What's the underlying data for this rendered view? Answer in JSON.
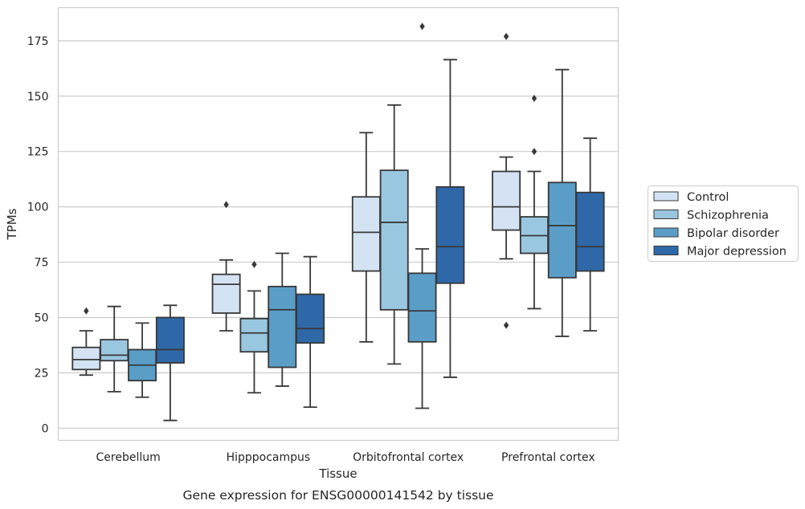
{
  "chart_data": {
    "type": "box",
    "title": "",
    "caption": "Gene expression for ENSG00000141542 by tissue",
    "xlabel": "Tissue",
    "ylabel": "TPMs",
    "ylim": [
      -5.5,
      190
    ],
    "yticks": [
      0,
      25,
      50,
      75,
      100,
      125,
      150,
      175
    ],
    "grid": true,
    "legend_position": "right",
    "categories": [
      "Cerebellum",
      "Hipppocampus",
      "Orbitofrontal cortex",
      "Prefrontal cortex"
    ],
    "series": [
      {
        "name": "Control",
        "color": "#d4e3f3",
        "boxes": [
          {
            "whislo": 24,
            "q1": 26.5,
            "med": 31,
            "q3": 36.5,
            "whishi": 44,
            "fliers": [
              53
            ]
          },
          {
            "whislo": 44,
            "q1": 52,
            "med": 65,
            "q3": 69.5,
            "whishi": 76,
            "fliers": [
              101
            ]
          },
          {
            "whislo": 39,
            "q1": 71,
            "med": 88.5,
            "q3": 104.5,
            "whishi": 133.5,
            "fliers": []
          },
          {
            "whislo": 76.5,
            "q1": 89.5,
            "med": 100,
            "q3": 116,
            "whishi": 122.5,
            "fliers": [
              177,
              46.5
            ]
          }
        ]
      },
      {
        "name": "Schizophrenia",
        "color": "#9ac7e0",
        "boxes": [
          {
            "whislo": 16.5,
            "q1": 30.5,
            "med": 33,
            "q3": 40,
            "whishi": 55,
            "fliers": []
          },
          {
            "whislo": 16,
            "q1": 34.5,
            "med": 43,
            "q3": 49.5,
            "whishi": 62,
            "fliers": [
              74
            ]
          },
          {
            "whislo": 29,
            "q1": 53.5,
            "med": 93,
            "q3": 116.5,
            "whishi": 146,
            "fliers": []
          },
          {
            "whislo": 54,
            "q1": 79,
            "med": 87,
            "q3": 95.5,
            "whishi": 116,
            "fliers": [
              149,
              125
            ]
          }
        ]
      },
      {
        "name": "Bipolar disorder",
        "color": "#5a9ec8",
        "boxes": [
          {
            "whislo": 14,
            "q1": 21.5,
            "med": 28.5,
            "q3": 35.5,
            "whishi": 47.5,
            "fliers": []
          },
          {
            "whislo": 19,
            "q1": 27.5,
            "med": 53.5,
            "q3": 64,
            "whishi": 79,
            "fliers": []
          },
          {
            "whislo": 9,
            "q1": 39,
            "med": 53,
            "q3": 70,
            "whishi": 81,
            "fliers": [
              181.5
            ]
          },
          {
            "whislo": 41.5,
            "q1": 68,
            "med": 91.5,
            "q3": 111,
            "whishi": 162,
            "fliers": []
          }
        ]
      },
      {
        "name": "Major depression",
        "color": "#2e68a8",
        "boxes": [
          {
            "whislo": 3.5,
            "q1": 29.5,
            "med": 35.5,
            "q3": 50,
            "whishi": 55.5,
            "fliers": []
          },
          {
            "whislo": 9.5,
            "q1": 38.5,
            "med": 45,
            "q3": 60.5,
            "whishi": 77.5,
            "fliers": []
          },
          {
            "whislo": 23,
            "q1": 65.5,
            "med": 82,
            "q3": 109,
            "whishi": 166.5,
            "fliers": []
          },
          {
            "whislo": 44,
            "q1": 71,
            "med": 82,
            "q3": 106.5,
            "whishi": 131,
            "fliers": []
          }
        ]
      }
    ]
  },
  "style": {
    "grid_color": "#cccccc",
    "frame_color": "#cccccc",
    "box_edge_color": "#383838",
    "text_color": "#262626"
  }
}
